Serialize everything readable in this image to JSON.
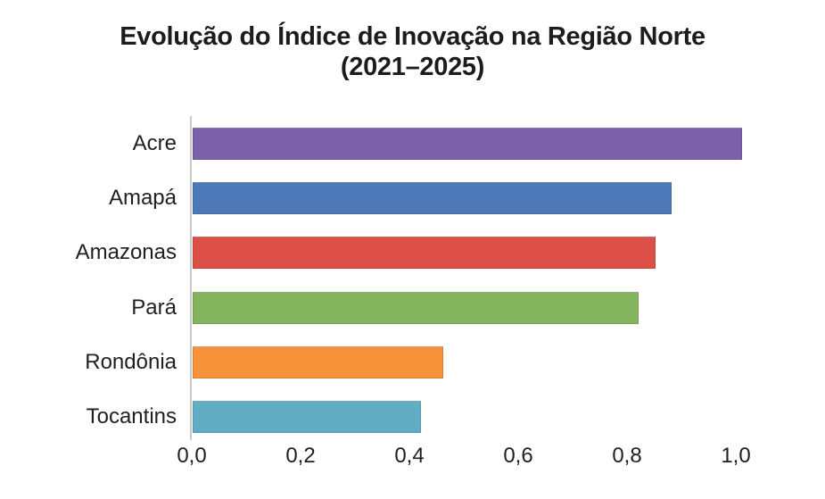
{
  "figure": {
    "title_line1": "Evolução do Índice de Inovação na Região Norte",
    "title_line2": "(2021–2025)"
  },
  "chart_data": {
    "type": "bar",
    "orientation": "horizontal",
    "title": "Evolução do Índice de Inovação na Região Norte (2021–2025)",
    "categories": [
      "Acre",
      "Amapá",
      "Amazonas",
      "Pará",
      "Rondônia",
      "Tocantins"
    ],
    "values": [
      1.01,
      0.88,
      0.85,
      0.82,
      0.46,
      0.42
    ],
    "bar_colors": [
      "#7A61A9",
      "#4E79B9",
      "#DC4F46",
      "#84B55E",
      "#F6923A",
      "#62ADC4"
    ],
    "xlabel": "",
    "ylabel": "",
    "xlim": [
      0.0,
      1.0
    ],
    "xticks": [
      0.0,
      0.2,
      0.4,
      0.6,
      0.8,
      1.0
    ],
    "xtick_labels": [
      "0,0",
      "0,2",
      "0,4",
      "0,6",
      "0,8",
      "1,0"
    ],
    "decimal_separator": ",",
    "grid": false,
    "legend": "none",
    "background_color": "#ffffff"
  },
  "style": {
    "axis_line_color": "#cacaca",
    "title_color": "#1c1c1c",
    "label_color": "#1f1f1f"
  }
}
